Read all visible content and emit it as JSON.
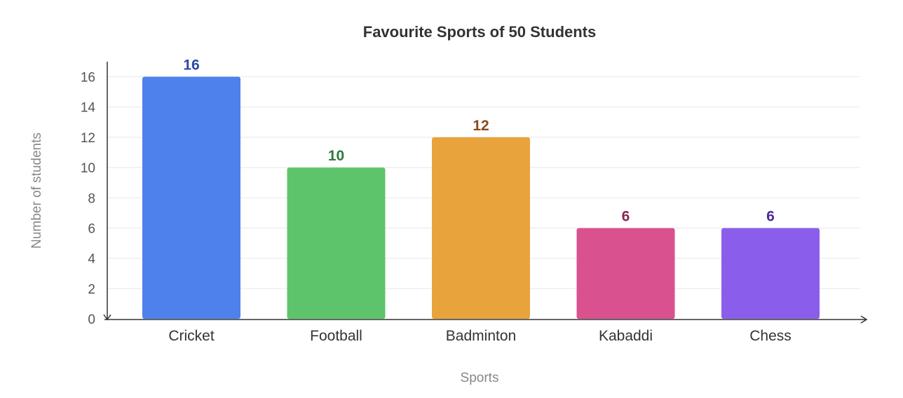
{
  "chart_data": {
    "type": "bar",
    "title": "Favourite Sports of 50 Students",
    "xlabel": "Sports",
    "ylabel": "Number of students",
    "categories": [
      "Cricket",
      "Football",
      "Badminton",
      "Kabaddi",
      "Chess"
    ],
    "values": [
      16,
      10,
      12,
      6,
      6
    ],
    "ylim": [
      0,
      17
    ],
    "yticks": [
      "0",
      "2",
      "4",
      "6",
      "8",
      "10",
      "12",
      "14",
      "16"
    ],
    "grid": true,
    "legend": "none",
    "bar_colors": [
      "#4f81ec",
      "#5ec46b",
      "#e8a33c",
      "#d9518f",
      "#8a5eea"
    ],
    "label_colors": [
      "#2a4aa6",
      "#2f7a3a",
      "#8a4a1c",
      "#8b2559",
      "#4e2a9a"
    ],
    "axis_color": "#333333",
    "grid_color": "#e8e8e8"
  }
}
